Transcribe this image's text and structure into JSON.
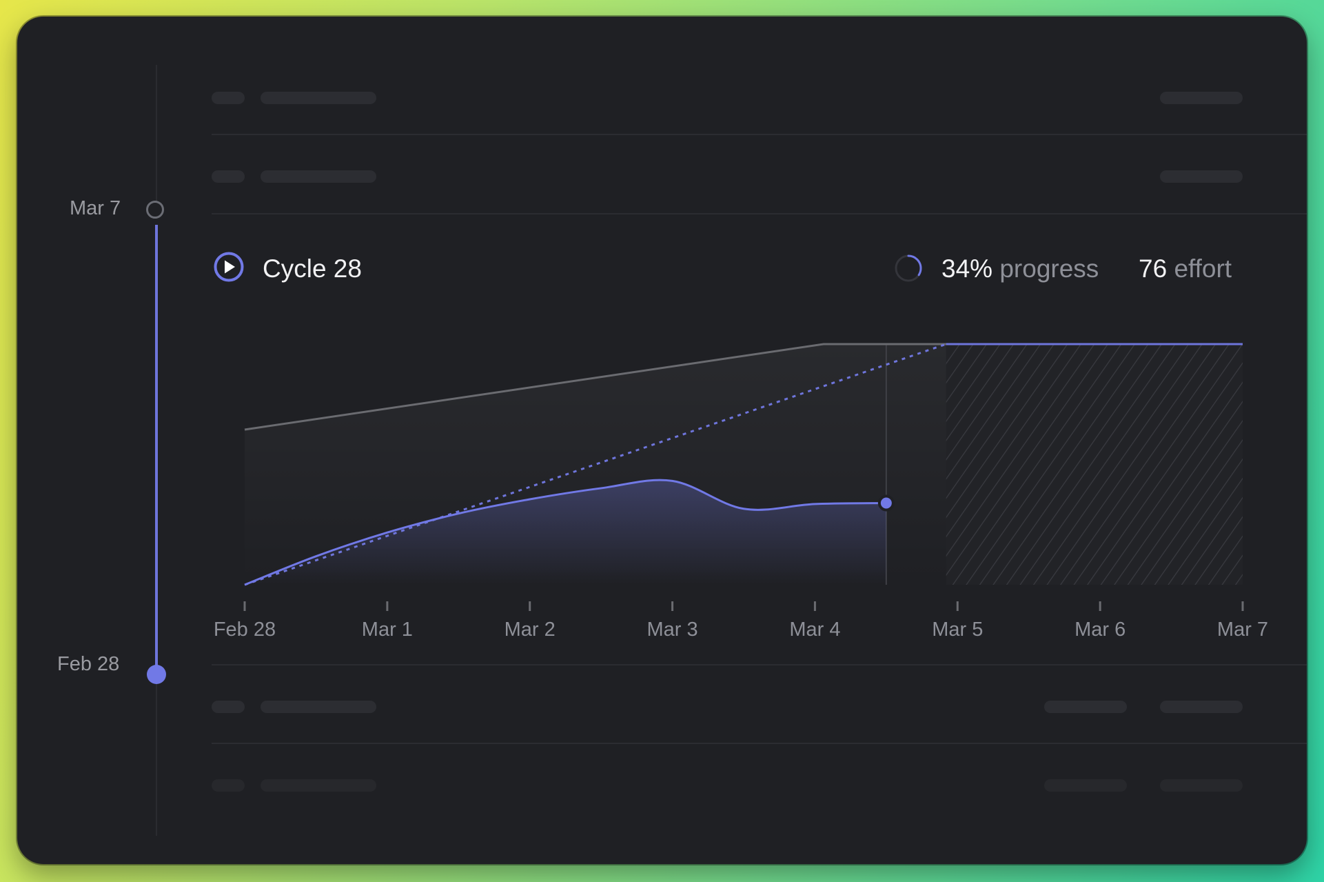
{
  "timeline": {
    "end_label": "Mar 7",
    "start_label": "Feb 28"
  },
  "cycle": {
    "title": "Cycle 28",
    "progress_value": "34%",
    "progress_unit": "progress",
    "effort_value": "76",
    "effort_unit": "effort",
    "progress_fraction": 0.34
  },
  "colors": {
    "accent": "#7179e6",
    "scope_line": "#6a6b70",
    "background": "#1f2024"
  },
  "chart_data": {
    "type": "area",
    "title": "",
    "xlabel": "",
    "ylabel": "",
    "categories": [
      "Feb 28",
      "Mar 1",
      "Mar 2",
      "Mar 3",
      "Mar 4",
      "Mar 5",
      "Mar 6",
      "Mar 7"
    ],
    "x_range": [
      0,
      7
    ],
    "ylim": [
      0,
      76
    ],
    "today_x": 4.5,
    "future_start_x": 4.92,
    "grid": false,
    "series": [
      {
        "kind": "scope",
        "x": [
          0,
          4.06,
          7
        ],
        "values": [
          49,
          76,
          76
        ]
      },
      {
        "kind": "target",
        "x": [
          0,
          4.92,
          7
        ],
        "values": [
          0,
          76,
          76
        ]
      },
      {
        "kind": "completed",
        "x": [
          0,
          0.5,
          1,
          1.5,
          2,
          2.5,
          3,
          3.5,
          4,
          4.5
        ],
        "values": [
          0,
          9,
          16.5,
          22.5,
          27,
          30.5,
          32.8,
          24.0,
          25.5,
          25.8
        ]
      }
    ]
  }
}
